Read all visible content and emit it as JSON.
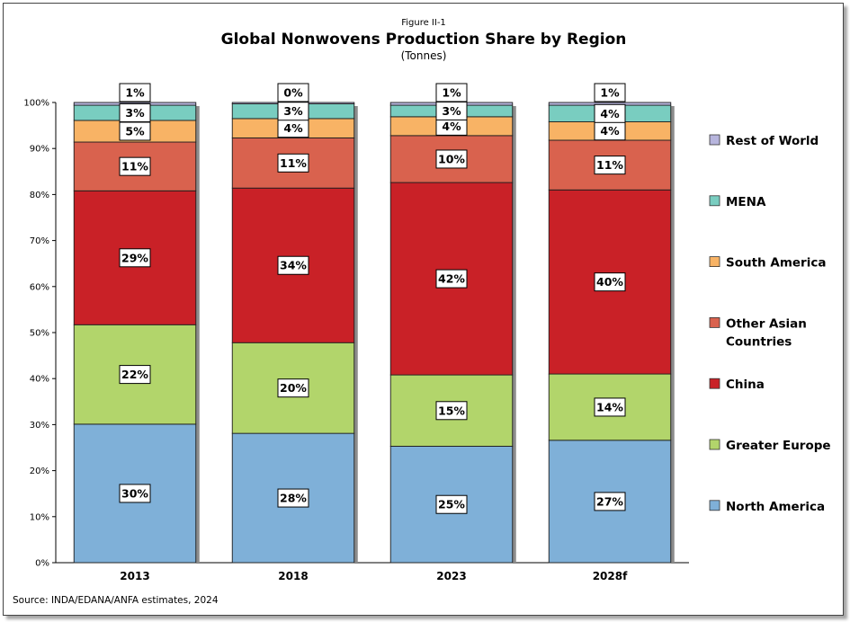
{
  "figure_label": "Figure II-1",
  "source": "Source: INDA/EDANA/ANFA estimates, 2024",
  "chart_data": {
    "type": "bar",
    "stacked": true,
    "title": "Global Nonwovens Production Share by Region",
    "subtitle": "(Tonnes)",
    "xlabel": "",
    "ylabel": "",
    "ylim": [
      0,
      100
    ],
    "y_ticks": [
      "0%",
      "10%",
      "20%",
      "30%",
      "40%",
      "50%",
      "60%",
      "70%",
      "80%",
      "90%",
      "100%"
    ],
    "categories": [
      "2013",
      "2018",
      "2023",
      "2028f"
    ],
    "legend_position": "right",
    "series": [
      {
        "name": "North America",
        "color": "#7fb0d8",
        "values": [
          30.1,
          28.1,
          25.3,
          26.6
        ],
        "labels": [
          "30%",
          "28%",
          "25%",
          "27%"
        ]
      },
      {
        "name": "Greater Europe",
        "color": "#b2d56b",
        "values": [
          21.6,
          19.7,
          15.5,
          14.4
        ],
        "labels": [
          "22%",
          "20%",
          "15%",
          "14%"
        ]
      },
      {
        "name": "China",
        "color": "#c92127",
        "values": [
          29.1,
          33.6,
          41.8,
          40.0
        ],
        "labels": [
          "29%",
          "34%",
          "42%",
          "40%"
        ]
      },
      {
        "name": "Other Asian Countries",
        "color": "#d9624e",
        "values": [
          10.6,
          10.9,
          10.2,
          10.8
        ],
        "labels": [
          "11%",
          "11%",
          "10%",
          "11%"
        ]
      },
      {
        "name": "South America",
        "color": "#f8b365",
        "values": [
          4.7,
          4.2,
          4.1,
          4.0
        ],
        "labels": [
          "5%",
          "4%",
          "4%",
          "4%"
        ]
      },
      {
        "name": "MENA",
        "color": "#79cdc0",
        "values": [
          3.3,
          3.2,
          2.5,
          3.6
        ],
        "labels": [
          "3%",
          "3%",
          "3%",
          "4%"
        ]
      },
      {
        "name": "Rest of World",
        "color": "#b7b5dd",
        "values": [
          0.6,
          0.3,
          0.6,
          0.6
        ],
        "labels": [
          "1%",
          "0%",
          "1%",
          "1%"
        ]
      }
    ]
  }
}
